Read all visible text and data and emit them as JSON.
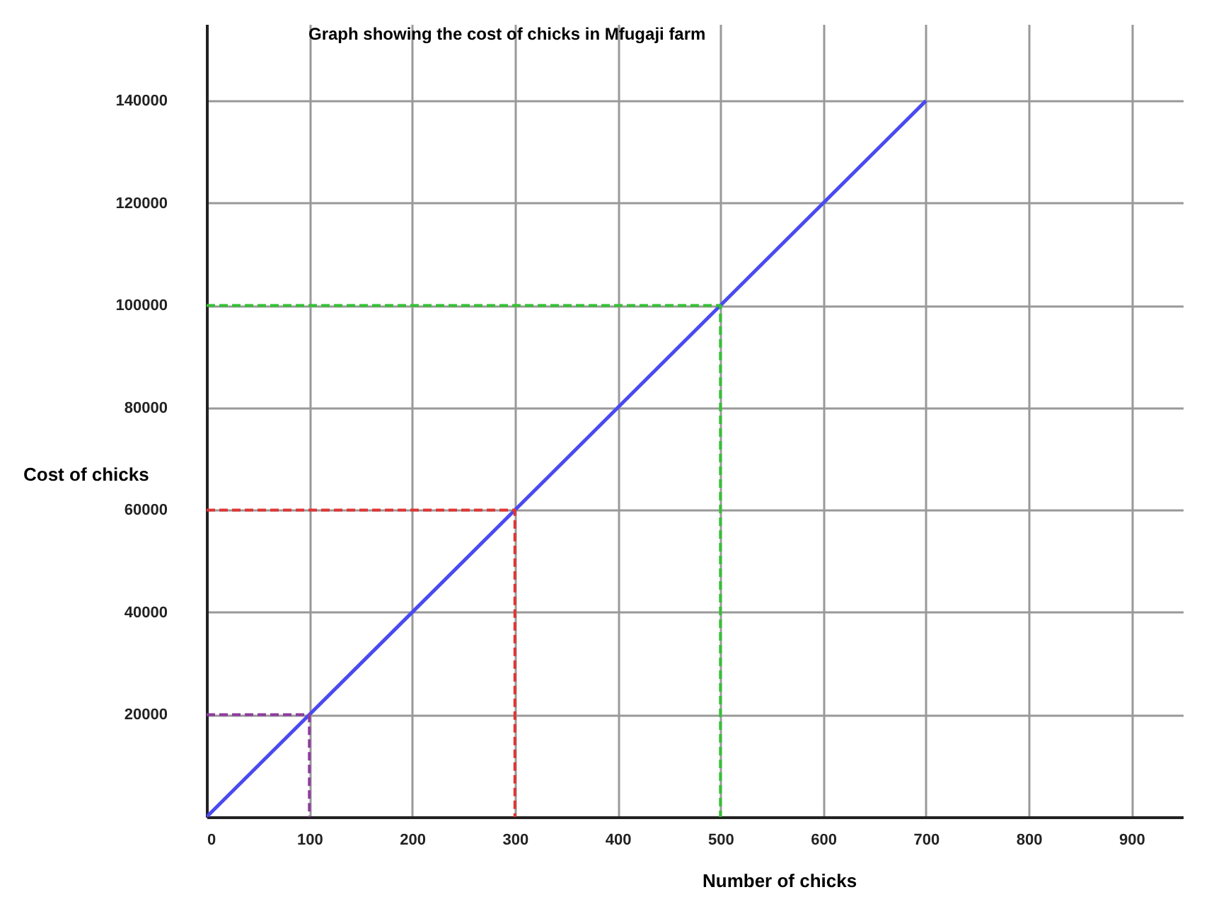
{
  "chart_data": {
    "type": "line",
    "title": "Graph showing the cost of chicks in Mfugaji farm",
    "xlabel": "Number of chicks",
    "ylabel": "Cost of chicks",
    "xlim": [
      0,
      950
    ],
    "xticks": [
      0,
      100,
      200,
      300,
      400,
      500,
      600,
      700,
      800,
      900
    ],
    "ylim": [
      0,
      155000
    ],
    "yticks": [
      20000,
      40000,
      60000,
      80000,
      100000,
      120000,
      140000
    ],
    "grid": true,
    "marker": "none",
    "series": [
      {
        "x": [
          0,
          700
        ],
        "values": [
          0,
          140000
        ],
        "color": "#4a4af0",
        "line_style": "solid"
      },
      {
        "x": [
          0,
          100,
          100
        ],
        "values": [
          20000,
          20000,
          0
        ],
        "color": "#8e3c9e",
        "line_style": "dashed"
      },
      {
        "x": [
          0,
          300,
          300
        ],
        "values": [
          60000,
          60000,
          0
        ],
        "color": "#e03434",
        "line_style": "dashed"
      },
      {
        "x": [
          0,
          500,
          500
        ],
        "values": [
          100000,
          100000,
          0
        ],
        "color": "#34c034",
        "line_style": "dashed"
      }
    ]
  }
}
